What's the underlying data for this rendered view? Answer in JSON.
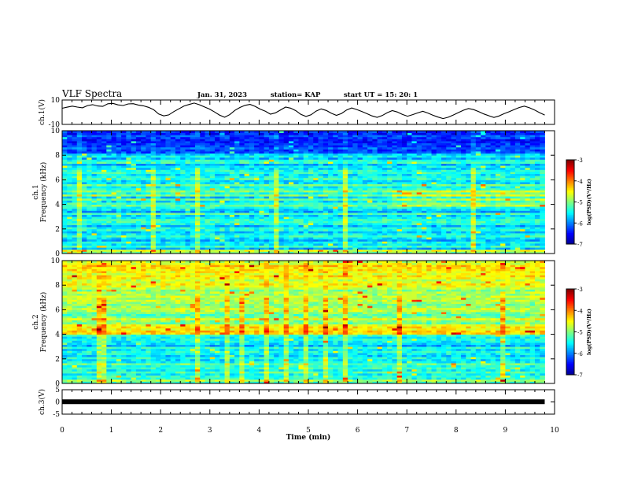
{
  "header": {
    "title": "VLF Spectra",
    "date": "Jan. 31, 2023",
    "station": "station= KAP",
    "start": "start  UT =   15: 20: 1"
  },
  "chart_data": [
    {
      "type": "line",
      "panel": "ch1-waveform",
      "ylabel": "ch.1(V)",
      "ylim": [
        -10,
        10
      ],
      "yticks": [
        "10",
        "-10"
      ],
      "xlim": [
        0,
        10
      ],
      "trace_color": "#000000",
      "values": [
        3.2,
        4.1,
        5.0,
        4.2,
        3.6,
        5.4,
        6.2,
        5.1,
        4.8,
        6.9,
        7.2,
        6.0,
        5.5,
        6.8,
        7.0,
        5.9,
        5.2,
        4.0,
        2.1,
        -1.5,
        -3.0,
        -2.2,
        0.5,
        2.8,
        5.1,
        6.3,
        7.5,
        6.1,
        4.4,
        2.6,
        0.2,
        -2.4,
        -4.1,
        -2.0,
        1.5,
        3.9,
        5.6,
        6.4,
        4.8,
        2.5,
        0.8,
        -1.6,
        -0.5,
        1.9,
        4.2,
        3.3,
        1.2,
        -1.8,
        -3.5,
        -2.1,
        0.9,
        2.7,
        1.4,
        -0.9,
        -2.6,
        -1.0,
        1.8,
        3.5,
        2.2,
        0.6,
        -1.2,
        -3.0,
        -4.2,
        -2.8,
        -0.4,
        1.3,
        0.1,
        -1.9,
        -3.3,
        -2.0,
        -0.6,
        0.8,
        -0.7,
        -2.5,
        -4.0,
        -5.2,
        -4.1,
        -2.3,
        -0.3,
        1.6,
        3.0,
        2.1,
        0.5,
        -1.4,
        -2.9,
        -4.3,
        -3.1,
        -1.2,
        0.4,
        2.2,
        3.9,
        5.0,
        3.6,
        1.8,
        -0.4,
        -2.3
      ]
    },
    {
      "type": "heatmap",
      "panel": "ch1-spectrogram",
      "ylabel": "Frequency (kHz)",
      "channel_label": "ch.1",
      "ylim": [
        0,
        10
      ],
      "yticks": [
        "0",
        "2",
        "4",
        "6",
        "8",
        "10"
      ],
      "xlim": [
        0,
        10
      ],
      "colorbar_label": "log(PSD)(V²/Hz)",
      "colorbar_ticks": [
        "-3",
        "-4",
        "-5",
        "-6",
        "-7"
      ],
      "colorbar_range": [
        -7,
        -3
      ],
      "colormap": [
        "#00008f",
        "#0000ff",
        "#0080ff",
        "#00ffff",
        "#80ff80",
        "#ffff00",
        "#ff8000",
        "#ff0000",
        "#800000"
      ],
      "profile": [
        -5.0,
        -4.6,
        -5.8,
        -5.3,
        -5.6,
        -5.5,
        -5.8,
        -5.6,
        -5.3,
        -5.5,
        -5.7,
        -5.4,
        -5.4,
        -5.8,
        -5.4,
        -5.3,
        -5.3,
        -5.5,
        -5.7,
        -5.2,
        -5.8,
        -5.6,
        -5.4,
        -5.1,
        -5.3,
        -5.6,
        -5.1,
        -5.7,
        -5.0,
        -5.4,
        -5.0,
        -5.3,
        -5.5,
        -5.1,
        -5.6,
        -5.6,
        -5.3,
        -5.4,
        -5.6,
        -5.3,
        -5.4,
        -5.6,
        -5.5,
        -5.8,
        -5.3,
        -5.4,
        -5.8,
        -5.5,
        -5.7,
        -6.2,
        -6.3,
        -6.1,
        -6.3,
        -6.3,
        -6.4,
        -6.4,
        -6.3,
        -6.2,
        -6.4,
        -6.3
      ]
    },
    {
      "type": "heatmap",
      "panel": "ch2-spectrogram",
      "ylabel": "Frequency (kHz)",
      "channel_label": "ch.2",
      "ylim": [
        0,
        10
      ],
      "yticks": [
        "0",
        "2",
        "4",
        "6",
        "8",
        "10"
      ],
      "xlim": [
        0,
        10
      ],
      "colorbar_label": "log(PSD)(V²/Hz)",
      "colorbar_ticks": [
        "-3",
        "-4",
        "-5",
        "-6",
        "-7"
      ],
      "colorbar_range": [
        -7,
        -3
      ],
      "colormap": [
        "#00008f",
        "#0000ff",
        "#0080ff",
        "#00ffff",
        "#80ff80",
        "#ffff00",
        "#ff8000",
        "#ff0000",
        "#800000"
      ],
      "profile": [
        -5.2,
        -4.8,
        -5.4,
        -5.3,
        -5.5,
        -5.2,
        -5.5,
        -5.3,
        -5.4,
        -5.1,
        -5.5,
        -5.6,
        -5.4,
        -5.7,
        -5.5,
        -5.4,
        -5.6,
        -5.3,
        -5.8,
        -5.6,
        -5.5,
        -5.4,
        -5.5,
        -5.3,
        -4.4,
        -4.3,
        -4.5,
        -4.4,
        -4.6,
        -5.1,
        -5.0,
        -4.6,
        -5.0,
        -5.2,
        -5.0,
        -4.8,
        -4.7,
        -4.9,
        -5.0,
        -4.9,
        -4.7,
        -4.8,
        -4.7,
        -4.9,
        -4.8,
        -5.0,
        -4.7,
        -4.6,
        -4.5,
        -4.6,
        -4.7,
        -4.5,
        -4.4,
        -4.6,
        -4.5,
        -4.4,
        -4.4,
        -4.3,
        -4.6,
        -4.7
      ]
    },
    {
      "type": "line",
      "panel": "ch3-waveform",
      "ylabel": "ch.3(V)",
      "ylim": [
        -5,
        5
      ],
      "yticks": [
        "5",
        "0",
        "-5"
      ],
      "xlim": [
        0,
        10
      ],
      "xlabel": "Time (min)",
      "xticks": [
        "0",
        "1",
        "2",
        "3",
        "4",
        "5",
        "6",
        "7",
        "8",
        "9",
        "10"
      ],
      "trace_color": "#000000",
      "x": [
        0,
        9.8
      ],
      "values": [
        0.1,
        0.1
      ]
    }
  ]
}
